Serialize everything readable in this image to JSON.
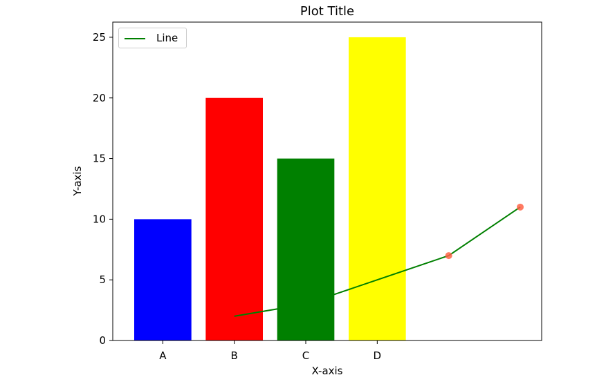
{
  "chart_data": {
    "type": "bar",
    "title": "Plot Title",
    "xlabel": "X-axis",
    "ylabel": "Y-axis",
    "categories": [
      "A",
      "B",
      "C",
      "D"
    ],
    "values": [
      10,
      20,
      15,
      25
    ],
    "bar_colors": [
      "#0000ff",
      "#ff0000",
      "#008000",
      "#ffff00"
    ],
    "ylim": [
      0,
      26.25
    ],
    "yticks": [
      0,
      5,
      10,
      15,
      20,
      25
    ],
    "line": {
      "name": "Line",
      "color": "#008000",
      "x": [
        1,
        2,
        3,
        4,
        5
      ],
      "y": [
        2,
        3,
        5,
        7,
        11
      ]
    },
    "scatter": {
      "color": "#ff6347",
      "x": [
        4,
        5
      ],
      "y": [
        7,
        11
      ]
    },
    "legend": {
      "position": "top-left",
      "entries": [
        "Line"
      ]
    },
    "grid": false
  }
}
